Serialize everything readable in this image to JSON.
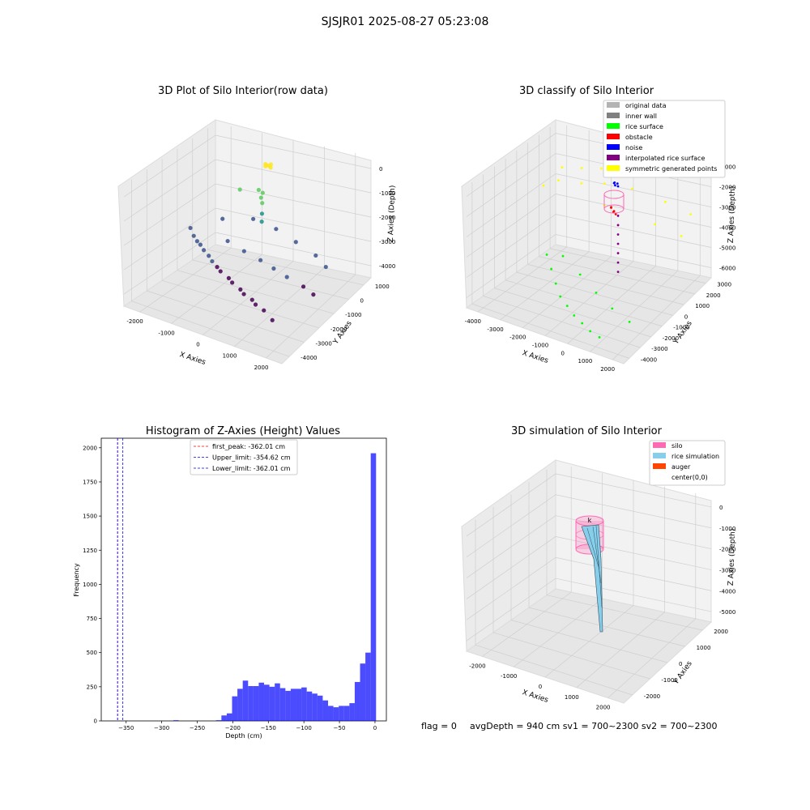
{
  "suptitle": "SJSJR01 2025-08-27 05:23:08",
  "footer": {
    "flag": "flag = 0",
    "avg": "avgDepth = 940 cm  sv1 = 700~2300  sv2 = 700~2300"
  },
  "colors": {
    "original": "#b3b3b3",
    "inner_wall": "#808080",
    "rice_surface": "#00ff00",
    "obstacle": "#ff0000",
    "noise": "#0000ff",
    "interp": "#800080",
    "symmetric": "#ffff00",
    "silo": "#ff69b4",
    "rice_sim": "#87ceeb",
    "auger": "#ff4500",
    "hist_bar": "#0000ff"
  },
  "chart_data": [
    {
      "type": "scatter",
      "dimensions": 3,
      "title": "3D Plot of Silo Interior(row data)",
      "xlabel": "X Axies",
      "ylabel": "Y Axies",
      "zlabel": "Z Axies (Depth)",
      "xticks": [
        "-2000",
        "-1000",
        "0",
        "1000",
        "2000"
      ],
      "yticks": [
        "1000",
        "0",
        "-1000",
        "-2000",
        "-3000",
        "-4000"
      ],
      "zticks": [
        "0",
        "-1000",
        "-2000",
        "-3000",
        "-4000"
      ],
      "xlim": [
        -2400,
        2400
      ],
      "ylim": [
        -4300,
        1500
      ],
      "zlim": [
        -4500,
        100
      ],
      "colormap": "viridis by depth",
      "points_xyz": [
        [
          -40,
          -200,
          -100
        ],
        [
          0,
          -180,
          -60
        ],
        [
          60,
          -150,
          -80
        ],
        [
          120,
          -200,
          -100
        ],
        [
          80,
          -100,
          -40
        ],
        [
          -80,
          -120,
          -70
        ],
        [
          -200,
          -300,
          -1000
        ],
        [
          -100,
          -250,
          -1100
        ],
        [
          -150,
          -250,
          -1300
        ],
        [
          -120,
          -240,
          -1500
        ],
        [
          -125,
          -245,
          -1900
        ],
        [
          -130,
          -250,
          -2200
        ],
        [
          -800,
          -250,
          -1200
        ],
        [
          -2200,
          -500,
          -3000
        ],
        [
          -2000,
          -700,
          -3150
        ],
        [
          -1700,
          -900,
          -3300
        ],
        [
          -1300,
          -1200,
          -3450
        ],
        [
          -900,
          -1500,
          -3600
        ],
        [
          -400,
          -1800,
          -3700
        ],
        [
          100,
          -2100,
          -3800
        ],
        [
          600,
          -2400,
          -3850
        ],
        [
          1100,
          -2700,
          -3900
        ],
        [
          1500,
          -3000,
          -3950
        ],
        [
          -1800,
          -900,
          -3200
        ],
        [
          -1500,
          -1100,
          -3350
        ],
        [
          -1100,
          -1400,
          -3500
        ],
        [
          -700,
          -1700,
          -3600
        ],
        [
          -200,
          -2000,
          -3700
        ],
        [
          300,
          -2300,
          -3800
        ],
        [
          800,
          -2600,
          -3850
        ],
        [
          -1200,
          -200,
          -3300
        ],
        [
          -600,
          -400,
          -3400
        ],
        [
          0,
          -600,
          -3450
        ],
        [
          500,
          -800,
          -3500
        ],
        [
          1000,
          -1000,
          -3550
        ],
        [
          1600,
          -1200,
          -3600
        ],
        [
          2000,
          -1400,
          -3650
        ],
        [
          -1600,
          300,
          -2800
        ],
        [
          -800,
          600,
          -2700
        ],
        [
          0,
          400,
          -2750
        ],
        [
          800,
          0,
          -2800
        ],
        [
          1600,
          -400,
          -2850
        ],
        [
          2100,
          -800,
          -2900
        ]
      ]
    },
    {
      "type": "scatter",
      "dimensions": 3,
      "title": "3D classify of Silo Interior",
      "xlabel": "X Axies",
      "ylabel": "Y Axies",
      "zlabel": "Z Axies (Depth)",
      "xticks": [
        "-4000",
        "-3000",
        "-2000",
        "-1000",
        "0",
        "1000",
        "2000"
      ],
      "yticks": [
        "3000",
        "2000",
        "1000",
        "0",
        "-1000",
        "-2000",
        "-3000",
        "-4000"
      ],
      "zticks": [
        "-1000",
        "-2000",
        "-3000",
        "-4000",
        "-5000",
        "-6000"
      ],
      "xlim": [
        -4400,
        2400
      ],
      "ylim": [
        -4300,
        3300
      ],
      "zlim": [
        -6500,
        0
      ],
      "legend_position": "top-right",
      "series": [
        {
          "name": "original data",
          "points_xyz": []
        },
        {
          "name": "inner wall",
          "points_xyz": []
        },
        {
          "name": "rice surface",
          "points_xyz": [
            [
              -3000,
              -200,
              -5000
            ],
            [
              -2500,
              -800,
              -5300
            ],
            [
              -2000,
              -1400,
              -5600
            ],
            [
              -1500,
              -2000,
              -5800
            ],
            [
              -1000,
              -2400,
              -5900
            ],
            [
              -500,
              -2800,
              -6000
            ],
            [
              0,
              -3100,
              -6050
            ],
            [
              500,
              -3400,
              -6100
            ],
            [
              1000,
              -3600,
              -6100
            ],
            [
              -2500,
              200,
              -5100
            ],
            [
              -1500,
              -300,
              -5500
            ],
            [
              -500,
              -900,
              -5800
            ],
            [
              500,
              -1500,
              -5950
            ],
            [
              1500,
              -2000,
              -6000
            ]
          ]
        },
        {
          "name": "obstacle",
          "points_xyz": [
            [
              -200,
              -200,
              -1500
            ],
            [
              -100,
              -150,
              -1700
            ],
            [
              0,
              -200,
              -1800
            ],
            [
              -250,
              -100,
              -1600
            ],
            [
              -50,
              -300,
              -1650
            ]
          ]
        },
        {
          "name": "noise",
          "points_xyz": [
            [
              -100,
              -100,
              -200
            ],
            [
              0,
              -50,
              -250
            ],
            [
              -50,
              -150,
              -300
            ],
            [
              50,
              -100,
              -350
            ],
            [
              -150,
              -50,
              -280
            ]
          ]
        },
        {
          "name": "interpolated rice surface",
          "points_xyz": [
            [
              0,
              0,
              -2000
            ],
            [
              0,
              0,
              -2500
            ],
            [
              0,
              0,
              -3000
            ],
            [
              0,
              0,
              -3500
            ],
            [
              0,
              0,
              -4000
            ],
            [
              0,
              0,
              -4500
            ],
            [
              0,
              0,
              -5000
            ]
          ]
        },
        {
          "name": "symmetric generated points",
          "points_xyz": [
            [
              -3200,
              1500,
              -1200
            ],
            [
              -2600,
              2000,
              -1300
            ],
            [
              -2000,
              2500,
              -1400
            ],
            [
              -1400,
              3000,
              -1500
            ],
            [
              -3000,
              800,
              -1500
            ],
            [
              -2200,
              1200,
              -1600
            ],
            [
              -1500,
              1800,
              -1700
            ],
            [
              -500,
              2200,
              -1900
            ],
            [
              800,
              2500,
              -2400
            ],
            [
              1800,
              2700,
              -2900
            ],
            [
              -3500,
              500,
              -1800
            ],
            [
              -1000,
              800,
              -2200
            ],
            [
              1000,
              1200,
              -2800
            ],
            [
              2000,
              1500,
              -3300
            ]
          ]
        }
      ]
    },
    {
      "type": "bar",
      "title": "Histogram of Z-Axies (Height) Values",
      "xlabel": "Depth (cm)",
      "ylabel": "Frequency",
      "xlim": [
        -385,
        16
      ],
      "ylim": [
        0,
        2070
      ],
      "xticks": [
        -350,
        -300,
        -250,
        -200,
        -150,
        -100,
        -50,
        0
      ],
      "yticks": [
        0,
        250,
        500,
        750,
        1000,
        1250,
        1500,
        1750,
        2000
      ],
      "bin_width": 7.5,
      "bin_centers": [
        -279.75,
        -219.75,
        -212.25,
        -204.75,
        -197.25,
        -189.75,
        -182.25,
        -174.75,
        -167.25,
        -159.75,
        -152.25,
        -144.75,
        -137.25,
        -129.75,
        -122.25,
        -114.75,
        -107.25,
        -99.75,
        -92.25,
        -84.75,
        -77.25,
        -69.75,
        -62.25,
        -54.75,
        -47.25,
        -39.75,
        -32.25,
        -24.75,
        -17.25,
        -9.75,
        -2.25
      ],
      "values": [
        5,
        5,
        40,
        55,
        180,
        235,
        295,
        255,
        255,
        280,
        265,
        250,
        275,
        240,
        220,
        235,
        235,
        245,
        215,
        200,
        185,
        150,
        110,
        100,
        110,
        110,
        130,
        285,
        420,
        500,
        1960
      ],
      "vertical_lines": [
        {
          "label": "first_peak: -362.01 cm",
          "x": -362.01,
          "color": "red"
        },
        {
          "label": "Upper_limit: -354.62 cm",
          "x": -354.62,
          "color": "blue"
        },
        {
          "label": "Lower_limit: -362.01 cm",
          "x": -362.01,
          "color": "blue"
        }
      ],
      "legend_position": "top-center"
    },
    {
      "type": "area",
      "dimensions": 3,
      "title": "3D simulation of Silo Interior",
      "xlabel": "X Axies",
      "ylabel": "Y Axies",
      "zlabel": "Z Axies (Depth)",
      "xticks": [
        "-2000",
        "-1000",
        "0",
        "1000",
        "2000"
      ],
      "yticks": [
        "2000",
        "1000",
        "0",
        "-1000",
        "-2000"
      ],
      "zticks": [
        "0",
        "-1000",
        "-2000",
        "-3000",
        "-4000",
        "-5000"
      ],
      "legend_position": "top-right",
      "series": [
        {
          "name": "silo"
        },
        {
          "name": "rice simulation"
        },
        {
          "name": "auger"
        },
        {
          "name": "center(0,0)"
        }
      ]
    }
  ]
}
